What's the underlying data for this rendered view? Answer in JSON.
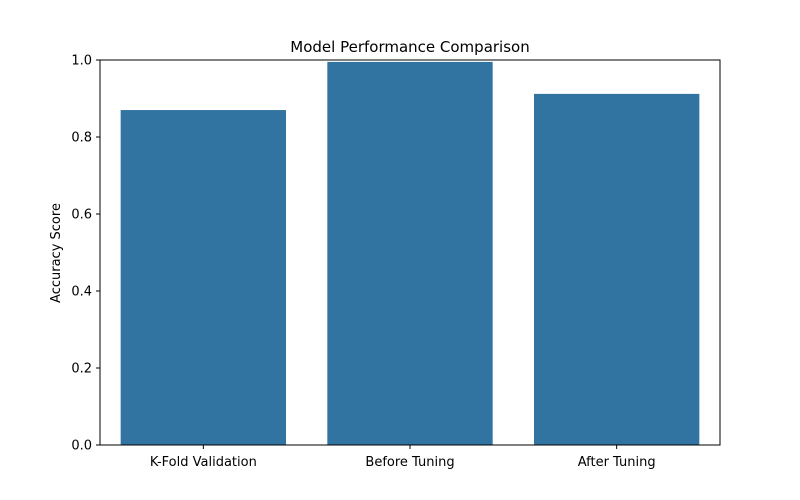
{
  "chart_data": {
    "type": "bar",
    "title": "Model Performance Comparison",
    "xlabel": "",
    "ylabel": "Accuracy Score",
    "categories": [
      "K-Fold Validation",
      "Before Tuning",
      "After Tuning"
    ],
    "values": [
      0.87,
      0.995,
      0.912
    ],
    "ylim": [
      0,
      1
    ],
    "yticks": [
      "0.0",
      "0.2",
      "0.4",
      "0.6",
      "0.8",
      "1.0"
    ],
    "grid": false,
    "bar_color": "#3274a1"
  }
}
